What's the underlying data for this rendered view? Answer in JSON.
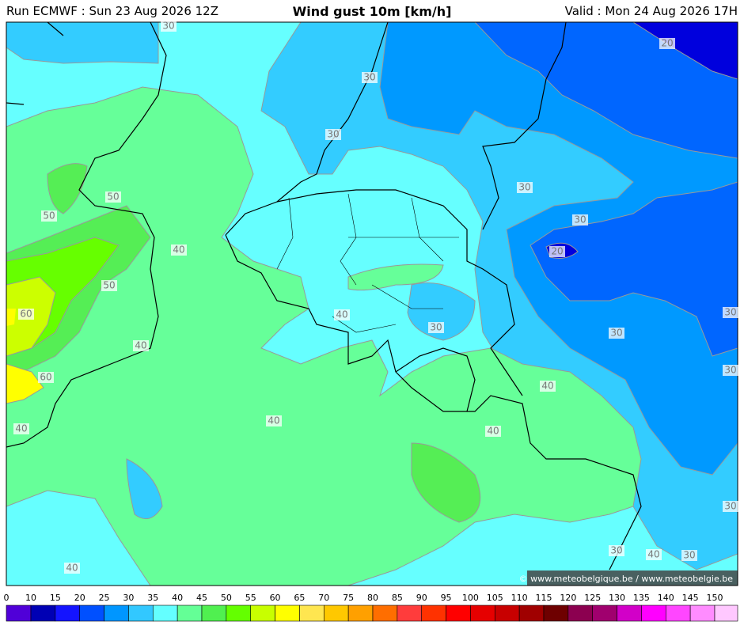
{
  "header": {
    "run": "Run ECMWF : Sun 23 Aug 2026 12Z",
    "title": "Wind gust 10m [km/h]",
    "valid": "Valid : Mon 24 Aug 2026 17H"
  },
  "map": {
    "contour_labels": [
      "30",
      "30",
      "30",
      "20",
      "30",
      "30",
      "20",
      "50",
      "50",
      "40",
      "50",
      "60",
      "40",
      "30",
      "30",
      "30",
      "40",
      "30",
      "60",
      "40",
      "40",
      "40",
      "40",
      "30",
      "30",
      "40",
      "30",
      "40"
    ]
  },
  "credit": "© www.meteobelgique.be / www.meteobelgie.be",
  "legend": {
    "ticks": [
      0,
      10,
      15,
      20,
      25,
      30,
      35,
      40,
      45,
      50,
      55,
      60,
      65,
      70,
      75,
      80,
      85,
      90,
      95,
      100,
      105,
      110,
      115,
      120,
      125,
      130,
      135,
      140,
      145,
      150
    ],
    "colors": [
      "#5000d8",
      "#0000b4",
      "#1414ff",
      "#0050ff",
      "#0096ff",
      "#32c8ff",
      "#64ffff",
      "#64ff96",
      "#50f050",
      "#64ff00",
      "#c8ff00",
      "#ffff00",
      "#ffe650",
      "#ffc800",
      "#ffa000",
      "#ff6e00",
      "#ff3c3c",
      "#ff3200",
      "#ff0000",
      "#e60000",
      "#c80000",
      "#a00000",
      "#6e0000",
      "#8c0050",
      "#a0006e",
      "#d200c8",
      "#ff00ff",
      "#ff46ff",
      "#ff8cff",
      "#ffc8ff"
    ]
  }
}
